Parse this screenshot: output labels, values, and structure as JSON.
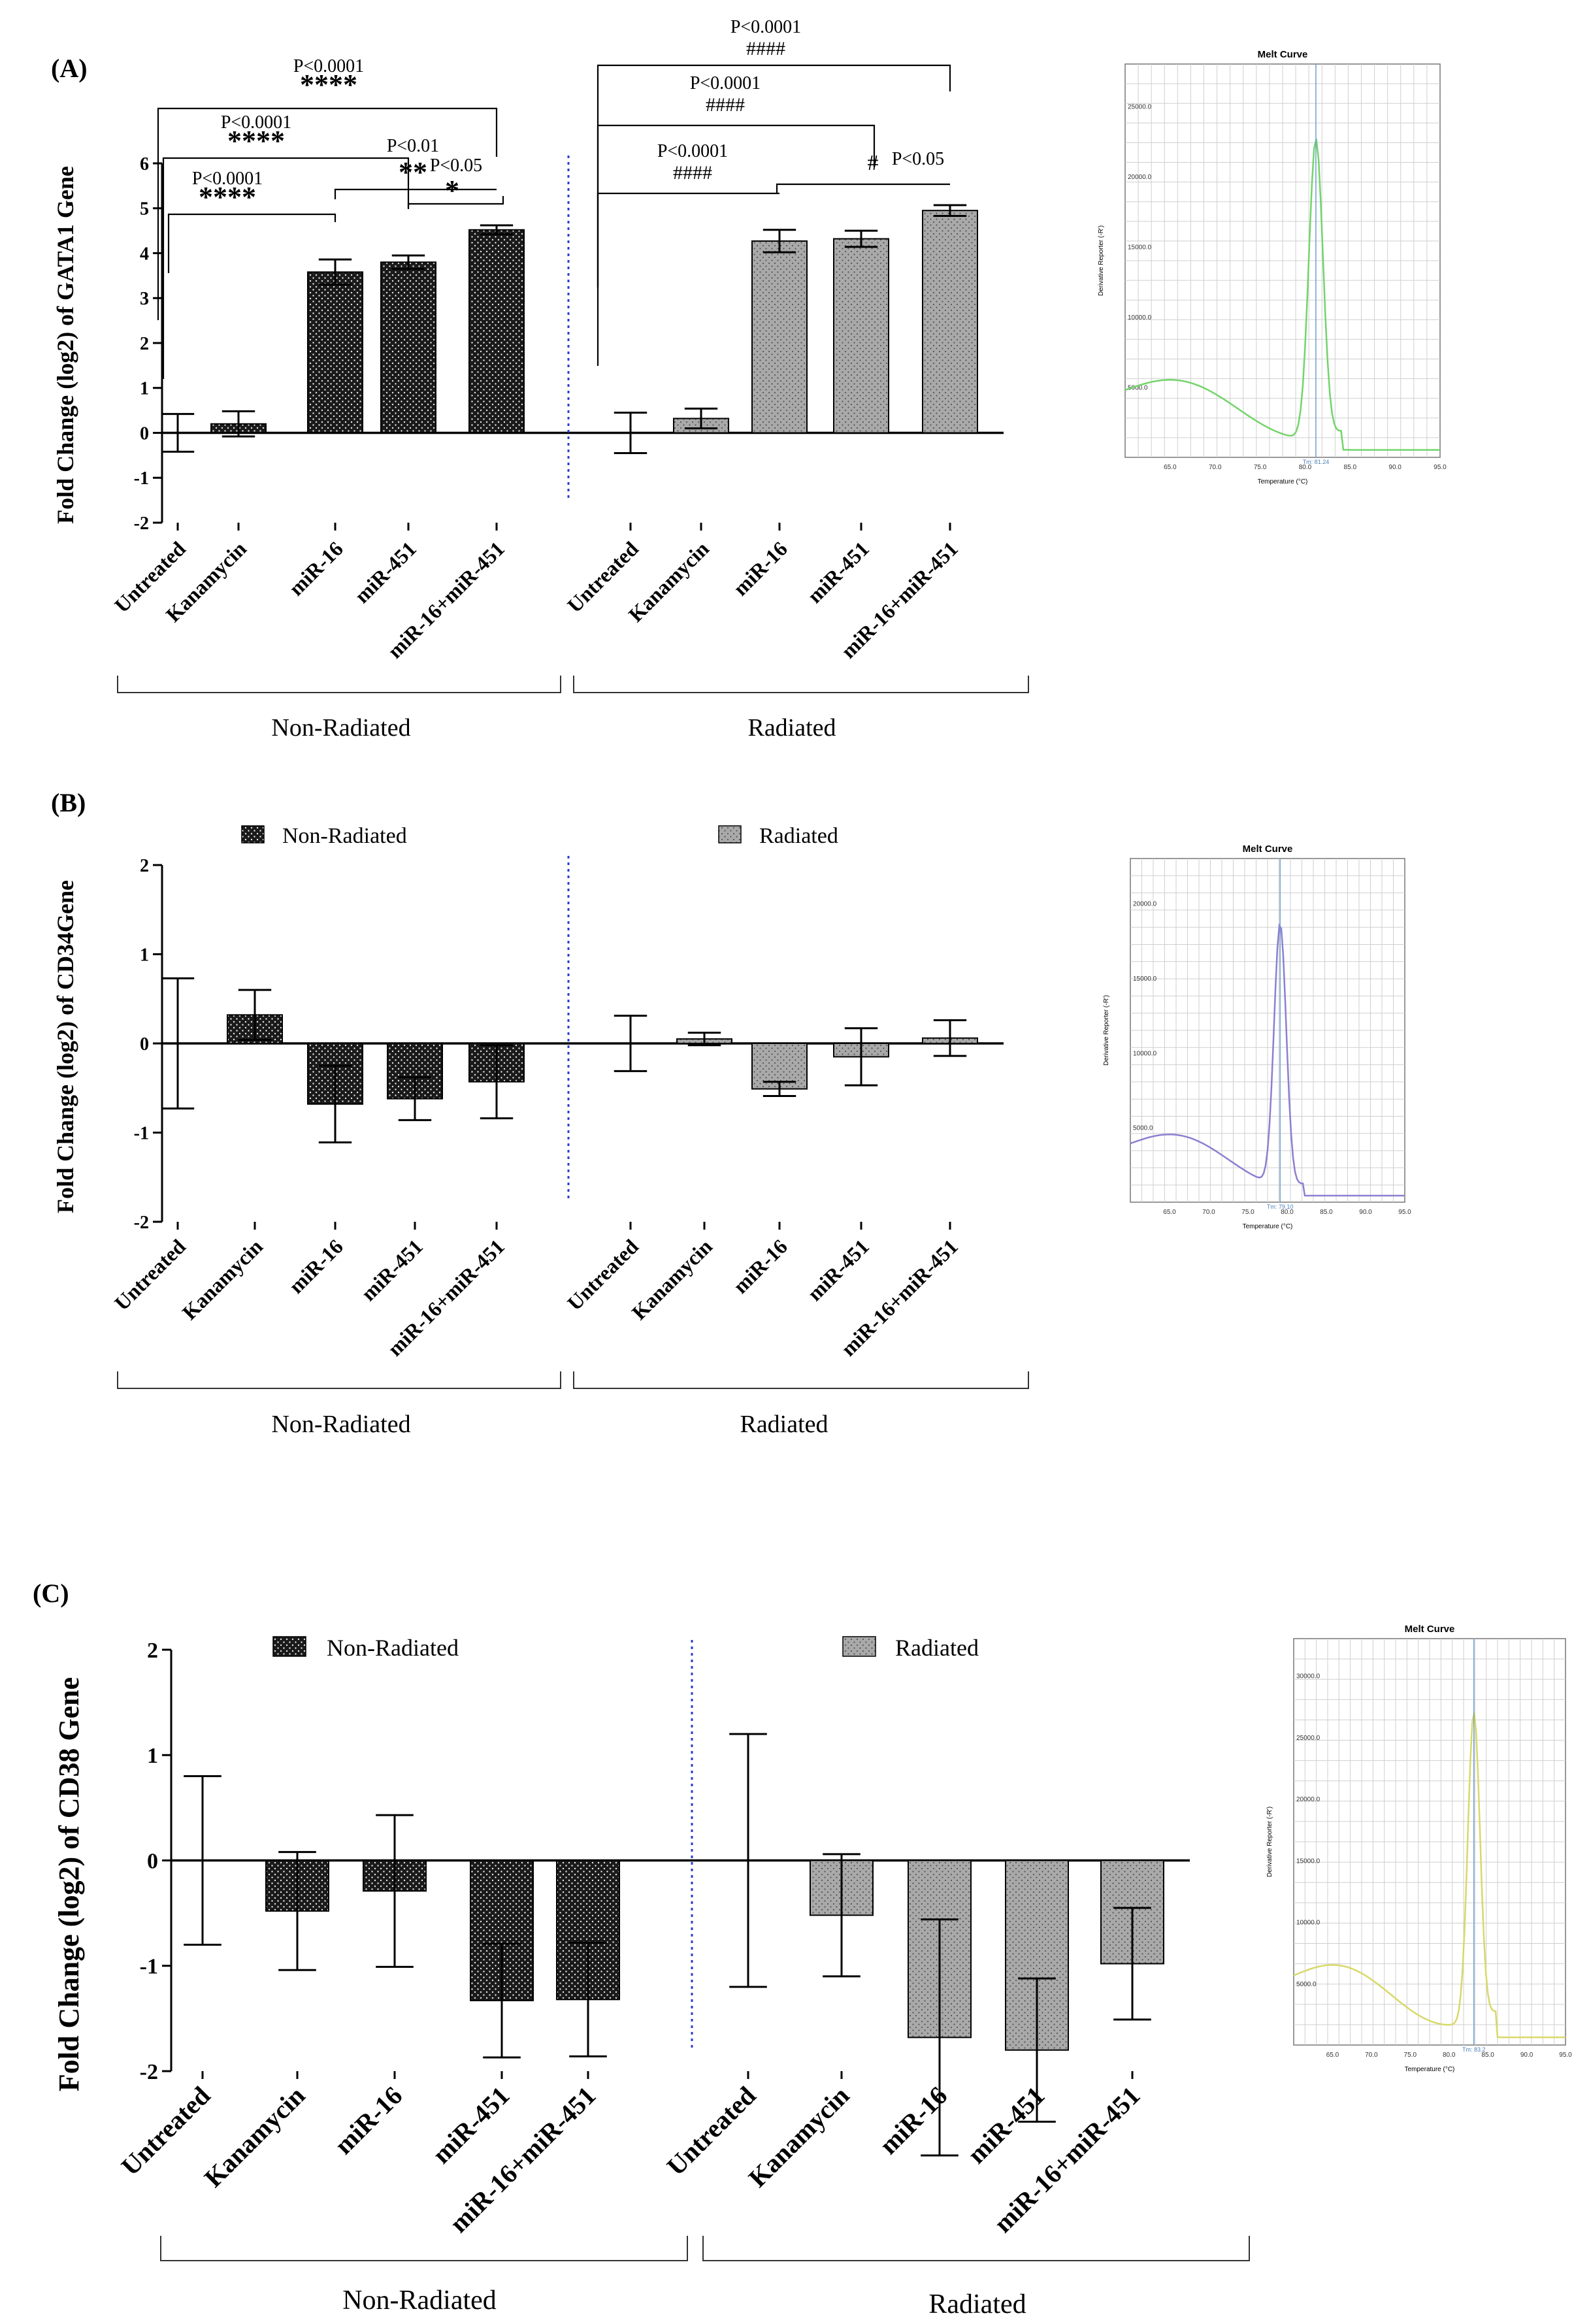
{
  "chart_data": [
    {
      "type": "bar",
      "panel_label": "(A)",
      "ylabel": "Fold Change (log2) of GATA1 Gene",
      "ylim": [
        -2,
        6
      ],
      "yticks": [
        -2,
        -1,
        0,
        1,
        2,
        3,
        4,
        5,
        6
      ],
      "categories": [
        "Untreated",
        "Kanamycin",
        "miR-16",
        "miR-451",
        "miR-16+miR-451"
      ],
      "series": [
        {
          "name": "Non-Radiated",
          "values": [
            0.0,
            0.2,
            3.58,
            3.8,
            4.52
          ],
          "errors": [
            0.42,
            0.28,
            0.28,
            0.15,
            0.1
          ]
        },
        {
          "name": "Radiated",
          "values": [
            0.0,
            0.32,
            4.27,
            4.32,
            4.95
          ],
          "errors": [
            0.45,
            0.22,
            0.25,
            0.18,
            0.12
          ]
        }
      ],
      "group_labels": [
        "Non-Radiated",
        "Radiated"
      ],
      "annotations": [
        {
          "group": 0,
          "from": 0,
          "to": 2,
          "p": "P<0.0001",
          "mark": "****"
        },
        {
          "group": 0,
          "from": 0,
          "to": 3,
          "p": "P<0.0001",
          "mark": "****"
        },
        {
          "group": 0,
          "from": 0,
          "to": 4,
          "p": "P<0.0001",
          "mark": "****"
        },
        {
          "group": 0,
          "from": 2,
          "to": 4,
          "p": "P<0.01",
          "mark": "**"
        },
        {
          "group": 0,
          "from": 3,
          "to": 4,
          "p": "P<0.05",
          "mark": "*"
        },
        {
          "group": 1,
          "from": 0,
          "to": 2,
          "p": "P<0.0001",
          "mark": "####"
        },
        {
          "group": 1,
          "from": 0,
          "to": 3,
          "p": "P<0.0001",
          "mark": "####"
        },
        {
          "group": 1,
          "from": 0,
          "to": 4,
          "p": "P<0.0001",
          "mark": "####"
        },
        {
          "group": 1,
          "from": 2,
          "to": 4,
          "p": "P<0.05",
          "mark": "#"
        }
      ]
    },
    {
      "type": "bar",
      "panel_label": "(B)",
      "ylabel": "Fold Change (log2) of CD34Gene",
      "ylim": [
        -2,
        2
      ],
      "yticks": [
        -2,
        -1,
        0,
        1,
        2
      ],
      "categories": [
        "Untreated",
        "Kanamycin",
        "miR-16",
        "miR-451",
        "miR-16+miR-451"
      ],
      "series": [
        {
          "name": "Non-Radiated",
          "values": [
            0.0,
            0.32,
            -0.68,
            -0.62,
            -0.43
          ],
          "errors": [
            0.73,
            0.28,
            0.43,
            0.24,
            0.41
          ]
        },
        {
          "name": "Radiated",
          "values": [
            0.0,
            0.05,
            -0.51,
            -0.15,
            0.06
          ],
          "errors": [
            0.31,
            0.07,
            0.08,
            0.32,
            0.2
          ]
        }
      ],
      "legend": [
        "Non-Radiated",
        "Radiated"
      ],
      "group_labels": [
        "Non-Radiated",
        "Radiated"
      ]
    },
    {
      "type": "bar",
      "panel_label": "(C)",
      "ylabel": "Fold Change (log2) of CD38 Gene",
      "ylim": [
        -2,
        2
      ],
      "yticks": [
        -2,
        -1,
        0,
        1,
        2
      ],
      "categories": [
        "Untreated",
        "Kanamycin",
        "miR-16",
        "miR-451",
        "miR-16+miR-451"
      ],
      "series": [
        {
          "name": "Non-Radiated",
          "values": [
            0.0,
            -0.48,
            -0.29,
            -1.33,
            -1.32
          ],
          "errors": [
            0.8,
            0.56,
            0.72,
            0.54,
            0.54
          ]
        },
        {
          "name": "Radiated",
          "values": [
            0.0,
            -0.52,
            -1.68,
            -1.8,
            -0.98
          ],
          "errors": [
            1.2,
            0.58,
            1.12,
            0.68,
            0.53
          ]
        }
      ],
      "legend": [
        "Non-Radiated",
        "Radiated"
      ],
      "group_labels": [
        "Non-Radiated",
        "Radiated"
      ]
    }
  ],
  "melt_curves": [
    {
      "title": "Melt Curve",
      "xlabel": "Temperature (°C)",
      "ylabel": "Derivative Reporter (-R')",
      "color": "#73d46a",
      "xticks": [
        "65.0",
        "70.0",
        "75.0",
        "80.0",
        "85.0",
        "90.0",
        "95.0"
      ],
      "yticks": [
        "5000.0",
        "10000.0",
        "15000.0",
        "20000.0",
        "25000.0"
      ],
      "tm_label": "Tm: 81.24",
      "peak_temp": 81.2
    },
    {
      "title": "Melt Curve",
      "xlabel": "Temperature (°C)",
      "ylabel": "Derivative Reporter (-R')",
      "color": "#8c7fd0",
      "xticks": [
        "65.0",
        "70.0",
        "75.0",
        "80.0",
        "85.0",
        "90.0",
        "95.0"
      ],
      "yticks": [
        "5000.0",
        "10000.0",
        "15000.0",
        "20000.0"
      ],
      "tm_label": "Tm: 79.10",
      "peak_temp": 79.1
    },
    {
      "title": "Melt Curve",
      "xlabel": "Temperature (°C)",
      "ylabel": "Derivative Reporter (-R')",
      "color": "#d8d86a",
      "xticks": [
        "65.0",
        "70.0",
        "75.0",
        "80.0",
        "85.0",
        "90.0",
        "95.0"
      ],
      "yticks": [
        "5000.0",
        "10000.0",
        "15000.0",
        "20000.0",
        "25000.0",
        "30000.0"
      ],
      "tm_label": "Tm: 83.2",
      "peak_temp": 83.2
    }
  ],
  "colors": {
    "non_radiated": "#1a1a1a",
    "radiated": "#a6a6a6",
    "divider": "#2b3ccc"
  }
}
